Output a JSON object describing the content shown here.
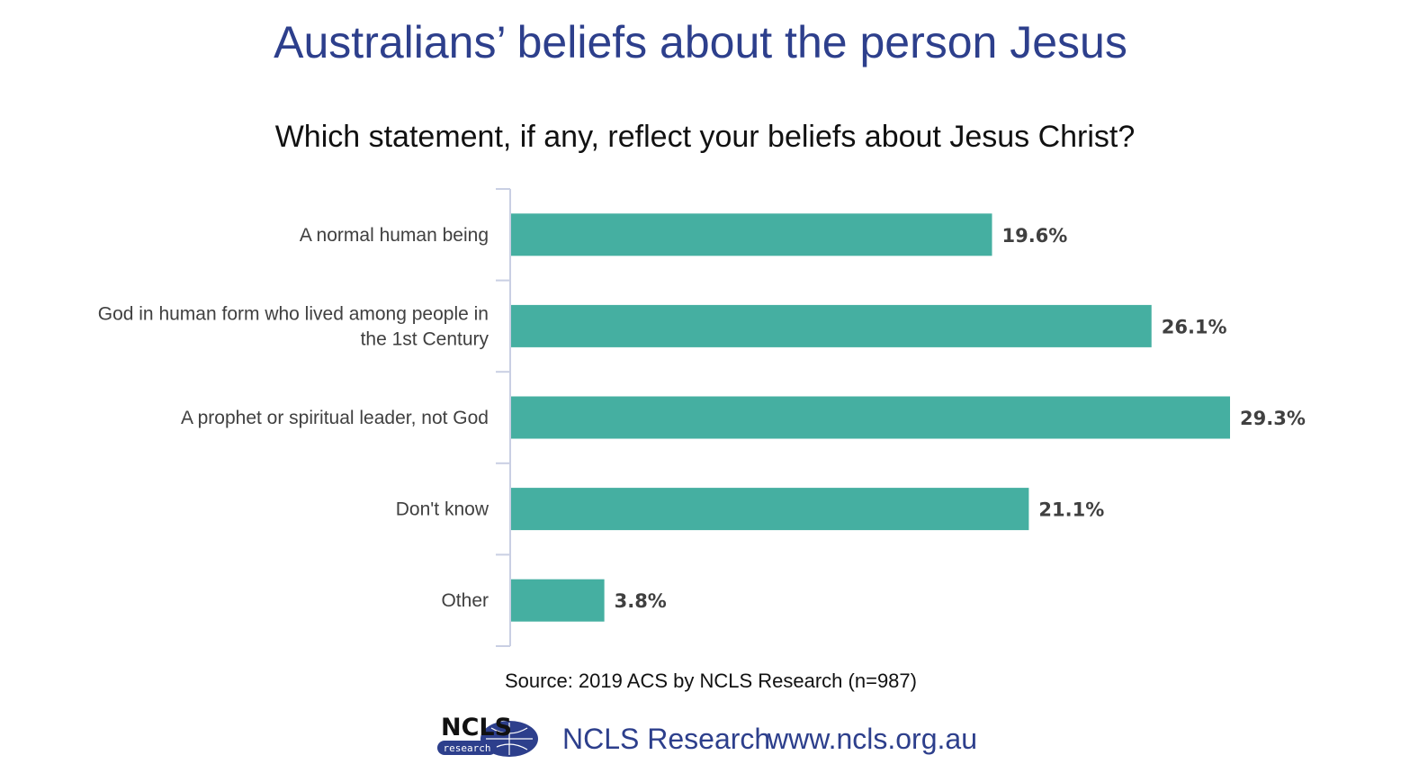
{
  "title": "Australians’ beliefs about the person Jesus",
  "subtitle": "Which statement, if any, reflect your beliefs about Jesus Christ?",
  "source": "Source: 2019 ACS by NCLS Research (n=987)",
  "footer": {
    "org": "NCLS Research",
    "url": "www.ncls.org.au",
    "logo_text": "NCLS",
    "logo_subtext": "research"
  },
  "colors": {
    "bar": "#45afa1",
    "title": "#2d3f8c",
    "axis": "#c9cfe3"
  },
  "chart_data": {
    "type": "bar",
    "orientation": "horizontal",
    "title": "Which statement, if any, reflect your beliefs about Jesus Christ?",
    "categories": [
      [
        "A normal human being"
      ],
      [
        "God in human form who lived among people in",
        "the 1st Century"
      ],
      [
        "A prophet or spiritual leader, not God"
      ],
      [
        "Don't know"
      ],
      [
        "Other"
      ]
    ],
    "values": [
      19.6,
      26.1,
      29.3,
      21.1,
      3.8
    ],
    "value_labels": [
      "19.6%",
      "26.1%",
      "29.3%",
      "21.1%",
      "3.8%"
    ],
    "xlim": [
      0,
      29.3
    ],
    "grid": false,
    "legend": "none"
  }
}
